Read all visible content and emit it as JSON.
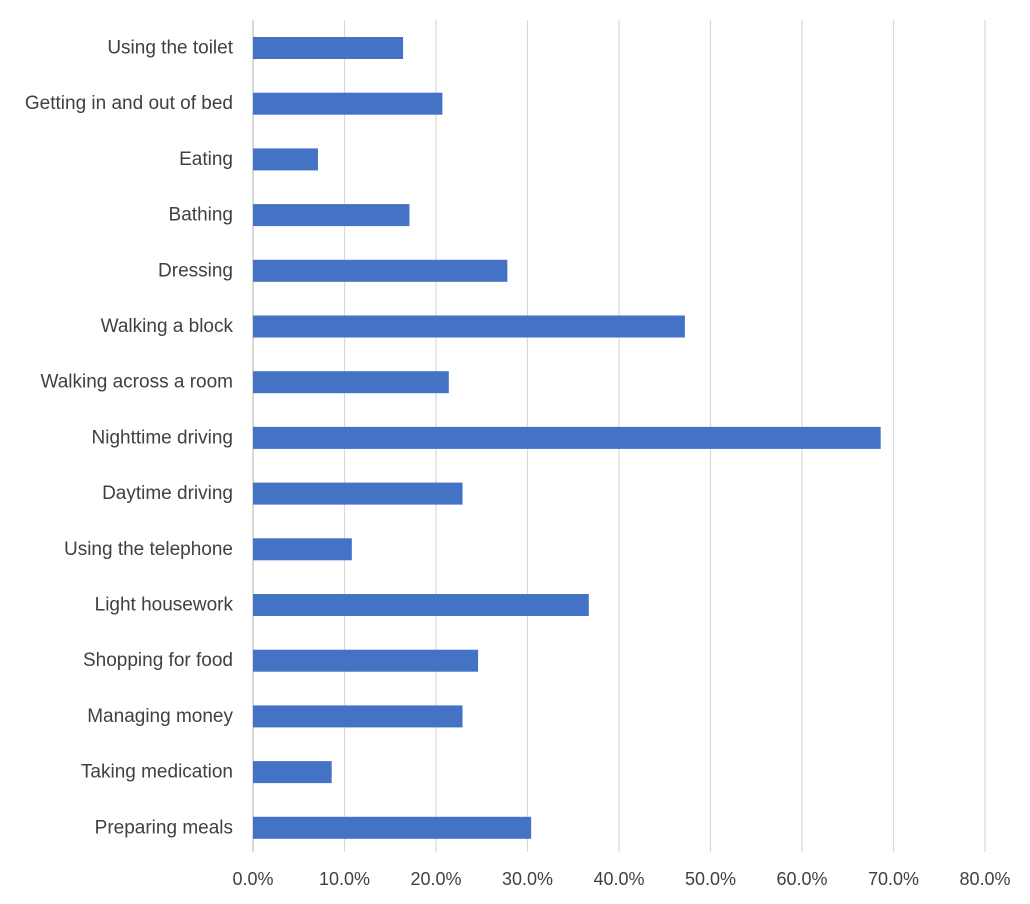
{
  "chart_data": {
    "type": "bar",
    "orientation": "horizontal",
    "title": "",
    "xlabel": "",
    "ylabel": "",
    "categories": [
      "Using the toilet",
      "Getting in and out of bed",
      "Eating",
      "Bathing",
      "Dressing",
      "Walking a block",
      "Walking across a room",
      "Nighttime driving",
      "Daytime driving",
      "Using the telephone",
      "Light housework",
      "Shopping for food",
      "Managing money",
      "Taking medication",
      "Preparing meals"
    ],
    "values": [
      16.4,
      20.7,
      7.1,
      17.1,
      27.8,
      47.2,
      21.4,
      68.6,
      22.9,
      10.8,
      36.7,
      24.6,
      22.9,
      8.6,
      30.4
    ],
    "xlim": [
      0,
      80
    ],
    "x_ticks": [
      0,
      10,
      20,
      30,
      40,
      50,
      60,
      70,
      80
    ],
    "x_tick_labels": [
      "0.0%",
      "10.0%",
      "20.0%",
      "30.0%",
      "40.0%",
      "50.0%",
      "60.0%",
      "70.0%",
      "80.0%"
    ],
    "grid": "vertical",
    "legend": "none",
    "bar_color": "#4472c4"
  }
}
